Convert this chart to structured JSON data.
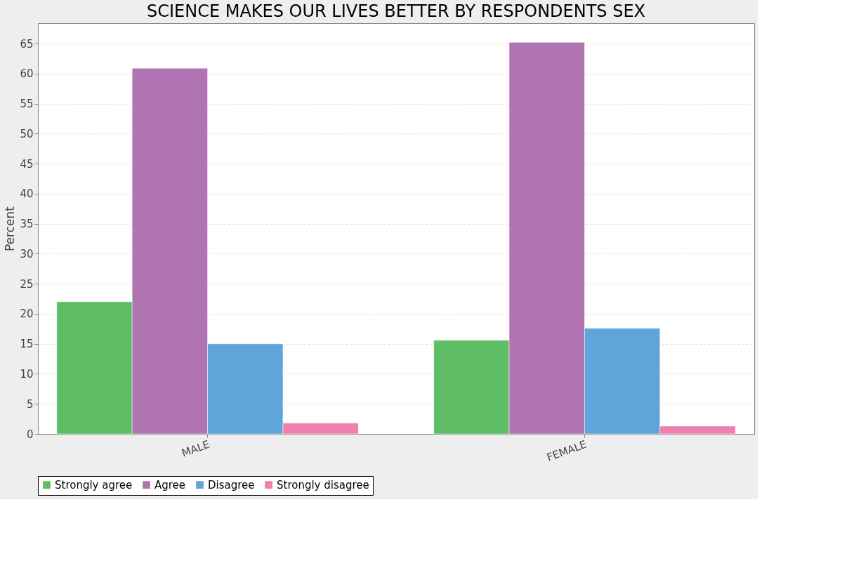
{
  "chart_data": {
    "type": "bar",
    "title": "SCIENCE MAKES OUR LIVES BETTER BY RESPONDENTS SEX",
    "ylabel": "Percent",
    "categories": [
      "MALE",
      "FEMALE"
    ],
    "series": [
      {
        "name": "Strongly agree",
        "color": "#5fbe65",
        "values": [
          22.0,
          15.6
        ]
      },
      {
        "name": "Agree",
        "color": "#b074b2",
        "values": [
          60.9,
          65.2
        ]
      },
      {
        "name": "Disagree",
        "color": "#5fa5da",
        "values": [
          15.0,
          17.6
        ]
      },
      {
        "name": "Strongly disagree",
        "color": "#f07fb0",
        "values": [
          1.8,
          1.3
        ]
      }
    ],
    "ylim": [
      0,
      68.4
    ],
    "yticks": [
      0,
      5,
      10,
      15,
      20,
      25,
      30,
      35,
      40,
      45,
      50,
      55,
      60,
      65
    ],
    "grid": "y",
    "legend": "bottom"
  }
}
